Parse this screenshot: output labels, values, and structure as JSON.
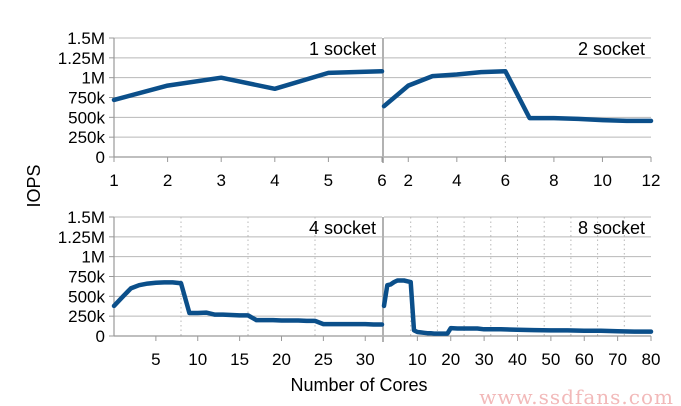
{
  "chart_data": {
    "type": "line",
    "ylabel": "IOPS",
    "xlabel": "Number of Cores",
    "y_ticks": [
      "0",
      "250k",
      "500k",
      "750k",
      "1M",
      "1.25M",
      "1.5M"
    ],
    "ylim": [
      0,
      1500000
    ],
    "series_color": "#0b4f8a",
    "watermark": "www.ssdfans.com",
    "panels": [
      {
        "title": "1 socket",
        "xlim": [
          1,
          6
        ],
        "x_ticks": [
          1,
          2,
          3,
          4,
          5,
          6
        ],
        "vgrid": [],
        "x": [
          1,
          2,
          3,
          4,
          5,
          6
        ],
        "y": [
          720000,
          900000,
          1000000,
          860000,
          1060000,
          1080000
        ]
      },
      {
        "title": "2 socket",
        "xlim": [
          1,
          12
        ],
        "x_ticks": [
          2,
          4,
          6,
          8,
          10,
          12
        ],
        "vgrid": [
          6
        ],
        "x": [
          1,
          2,
          3,
          4,
          5,
          6,
          7,
          8,
          9,
          10,
          11,
          12
        ],
        "y": [
          640000,
          900000,
          1020000,
          1040000,
          1070000,
          1080000,
          490000,
          490000,
          480000,
          465000,
          455000,
          455000
        ]
      },
      {
        "title": "4 socket",
        "xlim": [
          0,
          32
        ],
        "x_ticks": [
          5,
          10,
          15,
          20,
          25,
          30
        ],
        "vgrid": [
          8,
          16,
          24
        ],
        "x": [
          0,
          1,
          2,
          3,
          4,
          5,
          6,
          7,
          8,
          9,
          10,
          11,
          12,
          13,
          14,
          15,
          16,
          17,
          18,
          19,
          20,
          21,
          22,
          23,
          24,
          25,
          26,
          27,
          28,
          29,
          30,
          31,
          32
        ],
        "y": [
          380000,
          490000,
          600000,
          640000,
          660000,
          670000,
          675000,
          675000,
          665000,
          290000,
          290000,
          295000,
          270000,
          270000,
          265000,
          260000,
          260000,
          200000,
          200000,
          200000,
          195000,
          195000,
          195000,
          190000,
          190000,
          150000,
          150000,
          150000,
          150000,
          150000,
          150000,
          145000,
          145000
        ]
      },
      {
        "title": "8 socket",
        "xlim": [
          0,
          80
        ],
        "x_ticks": [
          10,
          20,
          30,
          40,
          50,
          60,
          70,
          80
        ],
        "vgrid": [
          8,
          16,
          24,
          32,
          40,
          48,
          56,
          64,
          72
        ],
        "x": [
          0,
          1,
          2,
          3,
          4,
          5,
          6,
          7,
          8,
          9,
          10,
          11,
          12,
          13,
          14,
          15,
          16,
          17,
          18,
          19,
          20,
          22,
          24,
          26,
          28,
          30,
          35,
          40,
          45,
          50,
          55,
          60,
          65,
          70,
          75,
          80
        ],
        "y": [
          380000,
          640000,
          650000,
          680000,
          700000,
          700000,
          700000,
          690000,
          680000,
          70000,
          50000,
          45000,
          40000,
          35000,
          35000,
          30000,
          30000,
          30000,
          30000,
          30000,
          100000,
          95000,
          95000,
          95000,
          95000,
          85000,
          85000,
          80000,
          75000,
          70000,
          70000,
          65000,
          65000,
          60000,
          55000,
          55000
        ]
      }
    ]
  }
}
